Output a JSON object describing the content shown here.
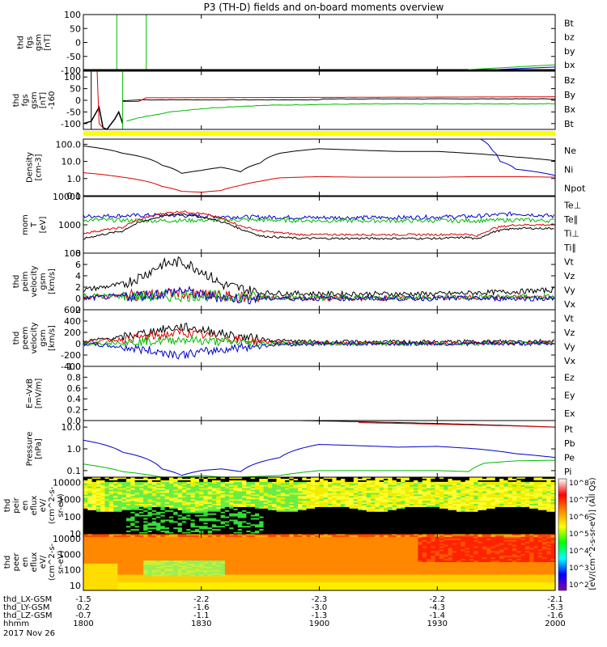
{
  "chart_data": {
    "type": "line",
    "title": "P3 (TH-D) fields and on-board moments overview",
    "date": "2017 Nov 26",
    "time_range_hhmm": [
      "1800",
      "2000"
    ],
    "x_ticks": [
      "1800",
      "1830",
      "1900",
      "1930",
      "2000"
    ],
    "x_minutes": [
      0,
      30,
      60,
      90,
      120
    ],
    "ephemeris": [
      {
        "label": "thd_LX-GSM",
        "values": [
          "-1.5",
          "-2.2",
          "-2.3",
          "-2.2",
          "-2.1"
        ]
      },
      {
        "label": "thd_LY-GSM",
        "values": [
          "0.2",
          "-1.6",
          "-3.0",
          "-4.3",
          "-5.3"
        ]
      },
      {
        "label": "thd_LZ-GSM",
        "values": [
          "-0.7",
          "-1.1",
          "-1.3",
          "-1.4",
          "-1.6"
        ]
      },
      {
        "label": "hhmm",
        "values": [
          "1800",
          "1830",
          "1900",
          "1930",
          "2000"
        ]
      }
    ],
    "panels": [
      {
        "id": "fgs_gsm_1",
        "ylabel": [
          "thd",
          "fgs",
          "gsm",
          "[nT]"
        ],
        "scale": "lin",
        "ylim": [
          -100,
          100
        ],
        "ticks": [
          "100",
          "50",
          "0",
          "-50",
          "-100"
        ],
        "legend": [
          {
            "name": "Bt",
            "color": "#000000"
          },
          {
            "name": "bz",
            "color": "#dd0000"
          },
          {
            "name": "by",
            "color": "#00bb00"
          },
          {
            "name": "bx",
            "color": "#0000cc"
          }
        ]
      },
      {
        "id": "fgs_gsm_2",
        "ylabel": [
          "thd",
          "fgs",
          "gsm",
          "[nT]",
          "-160"
        ],
        "scale": "lin",
        "ylim": [
          -125,
          125
        ],
        "ticks": [
          "100",
          "50",
          "0",
          "-50",
          "-100"
        ],
        "legend": [
          {
            "name": "Bz",
            "color": "#dd0000"
          },
          {
            "name": "By",
            "color": "#00bb00"
          },
          {
            "name": "Bx",
            "color": "#000000"
          },
          {
            "name": "Bt",
            "color": "#dd0000"
          }
        ]
      },
      {
        "id": "density",
        "ylabel": [
          "Density",
          "[cm-3]"
        ],
        "scale": "log",
        "ylim": [
          0.1,
          200
        ],
        "ticks": [
          "100.0",
          "10.0",
          "1.0",
          "0.1"
        ],
        "legend": [
          {
            "name": "Ne",
            "color": "#dd0000"
          },
          {
            "name": "Ni",
            "color": "#000000"
          },
          {
            "name": "Npot",
            "color": "#0000cc"
          }
        ],
        "series": [
          {
            "name": "Ni",
            "color": "#000000",
            "x": [
              0,
              10,
              20,
              25,
              30,
              35,
              40,
              45,
              50,
              60,
              70,
              80,
              90,
              100,
              110,
              120
            ],
            "y": [
              80,
              30,
              6,
              2,
              3,
              4.5,
              2.5,
              8,
              30,
              55,
              45,
              38,
              38,
              28,
              18,
              11
            ]
          },
          {
            "name": "Ne",
            "color": "#dd0000",
            "x": [
              0,
              10,
              20,
              25,
              30,
              35,
              40,
              45,
              50,
              60,
              70,
              80,
              90,
              100,
              110,
              120
            ],
            "y": [
              2.2,
              1.2,
              0.35,
              0.18,
              0.16,
              0.2,
              0.4,
              0.7,
              1.1,
              1.3,
              1.2,
              1.2,
              1.2,
              1.3,
              1.3,
              1.2
            ]
          },
          {
            "name": "Npot",
            "color": "#0000cc",
            "x": [
              101,
              104,
              106,
              110,
              120
            ],
            "y": [
              200,
              45,
              10,
              3.5,
              1.5
            ]
          }
        ]
      },
      {
        "id": "mom_temp",
        "ylabel": [
          "mom",
          "T",
          "[eV]"
        ],
        "scale": "log",
        "ylim": [
          100,
          10000
        ],
        "ticks": [
          "10000",
          "1000",
          "100"
        ],
        "legend": [
          {
            "name": "Te⊥",
            "color": "#dd0000"
          },
          {
            "name": "Te∥",
            "color": "#000000"
          },
          {
            "name": "Ti⊥",
            "color": "#dd0000"
          },
          {
            "name": "Ti∥",
            "color": "#00bb00"
          }
        ],
        "series": [
          {
            "name": "Ti",
            "color": "#0000cc",
            "x": [
              0,
              20,
              40,
              60,
              80,
              100,
              110,
              120
            ],
            "y": [
              2000,
              2200,
              1900,
              1800,
              1800,
              2000,
              2500,
              2000
            ]
          },
          {
            "name": "Ti∥",
            "color": "#00bb00",
            "x": [
              0,
              20,
              40,
              60,
              80,
              100,
              110,
              120
            ],
            "y": [
              1500,
              1400,
              1500,
              1400,
              1400,
              1400,
              1500,
              1400
            ]
          },
          {
            "name": "Te⊥",
            "color": "#dd0000",
            "x": [
              0,
              10,
              20,
              25,
              30,
              40,
              45,
              55,
              70,
              90,
              98,
              100,
              105,
              110,
              120
            ],
            "y": [
              500,
              800,
              2500,
              3000,
              2500,
              900,
              600,
              450,
              450,
              450,
              470,
              380,
              800,
              1000,
              1000
            ]
          },
          {
            "name": "Te∥",
            "color": "#000000",
            "x": [
              0,
              10,
              20,
              25,
              30,
              40,
              45,
              55,
              70,
              90,
              98,
              100,
              105,
              110,
              120
            ],
            "y": [
              320,
              600,
              2000,
              2500,
              1900,
              700,
              400,
              330,
              330,
              330,
              360,
              300,
              600,
              750,
              750
            ]
          }
        ]
      },
      {
        "id": "peim_velocity",
        "ylabel": [
          "thd",
          "peim",
          "velocity",
          "gsm",
          "[km/s]"
        ],
        "scale": "lin",
        "ylim": [
          -2,
          8
        ],
        "ticks": [
          "8",
          "6",
          "4",
          "2",
          "0",
          "-2"
        ],
        "legend": [
          {
            "name": "Vt",
            "color": "#000000"
          },
          {
            "name": "Vz",
            "color": "#dd0000"
          },
          {
            "name": "Vy",
            "color": "#00bb00"
          },
          {
            "name": "Vx",
            "color": "#0000cc"
          }
        ],
        "series": [
          {
            "name": "Vt",
            "color": "#000000",
            "x": [
              0,
              10,
              15,
              20,
              25,
              30,
              35,
              45,
              60,
              90,
              110,
              120
            ],
            "y": [
              1.5,
              2.5,
              4,
              6,
              6.5,
              5,
              2.5,
              1,
              0.8,
              0.8,
              1.2,
              1.5
            ]
          },
          {
            "name": "Vz",
            "color": "#dd0000",
            "x": [
              0,
              20,
              25,
              30,
              40,
              60,
              120
            ],
            "y": [
              0.2,
              0.8,
              1,
              0.6,
              0.2,
              0,
              0.2
            ]
          },
          {
            "name": "Vy",
            "color": "#00bb00",
            "x": [
              0,
              20,
              30,
              40,
              60,
              120
            ],
            "y": [
              0.5,
              0.3,
              0.5,
              0.3,
              0.1,
              0.3
            ]
          },
          {
            "name": "Vx",
            "color": "#0000cc",
            "x": [
              0,
              20,
              25,
              30,
              40,
              60,
              120
            ],
            "y": [
              0,
              0.8,
              1.5,
              0.5,
              0,
              0,
              0
            ]
          }
        ]
      },
      {
        "id": "peem_velocity",
        "ylabel": [
          "thd",
          "peem",
          "velocity",
          "gsm",
          "[km/s]"
        ],
        "scale": "lin",
        "ylim": [
          -400,
          600
        ],
        "ticks": [
          "600",
          "400",
          "200",
          "0",
          "-200",
          "-400"
        ],
        "legend": [
          {
            "name": "Vt",
            "color": "#000000"
          },
          {
            "name": "Vz",
            "color": "#dd0000"
          },
          {
            "name": "Vy",
            "color": "#00bb00"
          },
          {
            "name": "Vx",
            "color": "#0000cc"
          }
        ],
        "series": [
          {
            "name": "Vt",
            "color": "#000000",
            "x": [
              0,
              10,
              20,
              25,
              30,
              40,
              50,
              60,
              90,
              120
            ],
            "y": [
              40,
              120,
              250,
              300,
              250,
              120,
              50,
              30,
              30,
              50
            ]
          },
          {
            "name": "Vz",
            "color": "#dd0000",
            "x": [
              0,
              10,
              20,
              25,
              30,
              40,
              50,
              60,
              90,
              120
            ],
            "y": [
              20,
              80,
              150,
              200,
              150,
              60,
              20,
              10,
              10,
              20
            ]
          },
          {
            "name": "Vy",
            "color": "#00bb00",
            "x": [
              0,
              10,
              20,
              25,
              30,
              40,
              50,
              60,
              90,
              120
            ],
            "y": [
              0,
              30,
              50,
              80,
              50,
              20,
              0,
              0,
              0,
              10
            ]
          },
          {
            "name": "Vx",
            "color": "#0000cc",
            "x": [
              0,
              10,
              20,
              25,
              30,
              40,
              50,
              60,
              90,
              120
            ],
            "y": [
              0,
              -60,
              -150,
              -200,
              -150,
              -60,
              -10,
              0,
              0,
              0
            ]
          }
        ]
      },
      {
        "id": "e_field",
        "ylabel": [
          "E=-VxB",
          "[mV/m]"
        ],
        "scale": "lin",
        "ylim": [
          0,
          1
        ],
        "ticks": [
          "1.0",
          "0.8",
          "0.6",
          "0.4",
          "0.2",
          "0.0"
        ],
        "legend": [
          {
            "name": "Ez",
            "color": "#dd0000"
          },
          {
            "name": "Ey",
            "color": "#00bb00"
          },
          {
            "name": "Ex",
            "color": "#0000cc"
          }
        ]
      },
      {
        "id": "pressure",
        "ylabel": [
          "Pressure",
          "[nPa]"
        ],
        "scale": "log",
        "ylim": [
          0.05,
          20
        ],
        "ticks": [
          "10.0",
          "1.0",
          "0.1"
        ],
        "legend": [
          {
            "name": "Pt",
            "color": "#000000"
          },
          {
            "name": "Pb",
            "color": "#dd0000"
          },
          {
            "name": "Pe",
            "color": "#00bb00"
          },
          {
            "name": "Pi",
            "color": "#0000cc"
          }
        ],
        "series": [
          {
            "name": "Pi",
            "color": "#0000cc",
            "x": [
              0,
              10,
              20,
              25,
              30,
              35,
              40,
              50,
              60,
              80,
              90,
              100,
              110,
              120
            ],
            "y": [
              2.5,
              0.7,
              0.12,
              0.06,
              0.1,
              0.12,
              0.09,
              0.4,
              1.6,
              1.2,
              1.3,
              1,
              0.6,
              0.4
            ]
          },
          {
            "name": "Pe",
            "color": "#00bb00",
            "x": [
              0,
              10,
              20,
              25,
              30,
              35,
              40,
              50,
              60,
              80,
              90,
              98,
              102,
              110,
              120
            ],
            "y": [
              0.2,
              0.09,
              0.05,
              0.05,
              0.06,
              0.05,
              0.05,
              0.06,
              0.1,
              0.1,
              0.1,
              0.09,
              0.22,
              0.28,
              0.3
            ]
          },
          {
            "name": "Pt",
            "color": "#000000",
            "x": [
              55,
              120
            ],
            "y": [
              20,
              10
            ]
          },
          {
            "name": "Pb",
            "color": "#dd0000",
            "x": [
              70,
              120
            ],
            "y": [
              16,
              10
            ]
          }
        ]
      },
      {
        "id": "peir_eflux",
        "ylabel": [
          "thd",
          "peir",
          "en",
          "eflux",
          "eV/",
          "(cm^2-s-",
          "sr-eV)"
        ],
        "scale": "log",
        "ylim": [
          10,
          20000
        ],
        "ticks": [
          "10000",
          "1000",
          "100",
          "10"
        ],
        "type": "spectrogram"
      },
      {
        "id": "peer_eflux",
        "ylabel": [
          "thd",
          "peer",
          "en",
          "eflux",
          "eV/",
          "(cm^2-s-",
          "sr-eV)"
        ],
        "scale": "log",
        "ylim": [
          5,
          20000
        ],
        "ticks": [
          "10000",
          "1000",
          "100",
          "10"
        ],
        "type": "spectrogram"
      }
    ],
    "colorbar": {
      "label": "[eV/(cm^2-s-sr-eV)] (All Qs)",
      "ticks": [
        "10^8",
        "10^7",
        "10^6",
        "10^5",
        "10^4",
        "10^3",
        "10^2"
      ],
      "colors": [
        "#ffffff",
        "#ff0000",
        "#ff8800",
        "#ffff00",
        "#00ff00",
        "#00ffff",
        "#0000ff",
        "#8800aa"
      ]
    }
  },
  "colors": {
    "black": "#000000",
    "red": "#dd0000",
    "green": "#00bb00",
    "blue": "#0000cc",
    "yellow": "#ffff00"
  }
}
